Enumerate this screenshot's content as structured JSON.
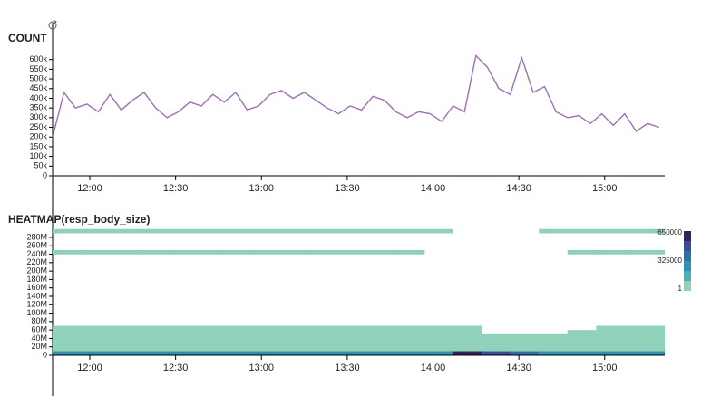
{
  "chart_data": [
    {
      "type": "line",
      "title": "COUNT",
      "color": "#9e6fb5",
      "x": [
        "11:47",
        "11:51",
        "11:55",
        "11:59",
        "12:03",
        "12:07",
        "12:11",
        "12:15",
        "12:19",
        "12:23",
        "12:27",
        "12:31",
        "12:35",
        "12:39",
        "12:43",
        "12:47",
        "12:51",
        "12:55",
        "12:59",
        "13:03",
        "13:07",
        "13:11",
        "13:15",
        "13:19",
        "13:23",
        "13:27",
        "13:31",
        "13:35",
        "13:39",
        "13:43",
        "13:47",
        "13:51",
        "13:55",
        "13:59",
        "14:03",
        "14:07",
        "14:11",
        "14:15",
        "14:19",
        "14:23",
        "14:27",
        "14:31",
        "14:35",
        "14:39",
        "14:43",
        "14:47",
        "14:51",
        "14:55",
        "14:59",
        "15:03",
        "15:07",
        "15:11",
        "15:15",
        "15:19"
      ],
      "values": [
        200000,
        430000,
        350000,
        370000,
        330000,
        420000,
        340000,
        390000,
        430000,
        350000,
        300000,
        330000,
        380000,
        360000,
        420000,
        380000,
        430000,
        340000,
        360000,
        420000,
        440000,
        400000,
        430000,
        390000,
        350000,
        320000,
        360000,
        340000,
        410000,
        390000,
        330000,
        300000,
        330000,
        320000,
        280000,
        360000,
        330000,
        620000,
        560000,
        450000,
        420000,
        610000,
        430000,
        460000,
        330000,
        300000,
        310000,
        270000,
        320000,
        260000,
        320000,
        230000,
        270000,
        250000
      ],
      "xlim": [
        "11:47",
        "15:21"
      ],
      "xticks": [
        "12:00",
        "12:30",
        "13:00",
        "13:30",
        "14:00",
        "14:30",
        "15:00"
      ],
      "ylim": [
        0,
        650000
      ],
      "yticks": [
        0,
        {
          "value": 50000,
          "label": "50k"
        },
        {
          "value": 100000,
          "label": "100k"
        },
        {
          "value": 150000,
          "label": "150k"
        },
        {
          "value": 200000,
          "label": "200k"
        },
        {
          "value": 250000,
          "label": "250k"
        },
        {
          "value": 300000,
          "label": "300k"
        },
        {
          "value": 350000,
          "label": "350k"
        },
        {
          "value": 400000,
          "label": "400k"
        },
        {
          "value": 450000,
          "label": "450k"
        },
        {
          "value": 500000,
          "label": "500k"
        },
        {
          "value": 550000,
          "label": "550k"
        },
        {
          "value": 600000,
          "label": "600k"
        }
      ]
    },
    {
      "type": "heatmap",
      "title": "HEATMAP(resp_body_size)",
      "x": [
        "11:47",
        "11:57",
        "12:07",
        "12:17",
        "12:27",
        "12:37",
        "12:47",
        "12:57",
        "13:07",
        "13:17",
        "13:27",
        "13:37",
        "13:47",
        "13:57",
        "14:07",
        "14:17",
        "14:27",
        "14:37",
        "14:47",
        "14:57",
        "15:07",
        "15:17"
      ],
      "rows": [
        {
          "y": 0,
          "values": [
            300000,
            300000,
            300000,
            300000,
            300000,
            300000,
            300000,
            300000,
            300000,
            300000,
            300000,
            300000,
            300000,
            300000,
            600000,
            500000,
            450000,
            300000,
            300000,
            300000,
            300000,
            300000
          ]
        },
        {
          "y": 10000000,
          "values": [
            5000,
            5000,
            5000,
            5000,
            5000,
            5000,
            5000,
            5000,
            5000,
            5000,
            5000,
            5000,
            5000,
            5000,
            5000,
            5000,
            5000,
            5000,
            5000,
            5000,
            5000,
            5000
          ]
        },
        {
          "y": 20000000,
          "values": [
            500,
            500,
            500,
            500,
            500,
            500,
            500,
            500,
            500,
            500,
            500,
            500,
            500,
            500,
            500,
            500,
            500,
            500,
            500,
            500,
            500,
            500
          ]
        },
        {
          "y": 30000000,
          "values": [
            500,
            500,
            500,
            500,
            500,
            500,
            500,
            500,
            500,
            500,
            500,
            500,
            500,
            500,
            500,
            500,
            500,
            500,
            500,
            500,
            500,
            500
          ]
        },
        {
          "y": 40000000,
          "values": [
            500,
            500,
            500,
            500,
            500,
            500,
            500,
            500,
            500,
            500,
            500,
            500,
            500,
            500,
            500,
            500,
            500,
            500,
            500,
            500,
            500,
            500
          ]
        },
        {
          "y": 50000000,
          "values": [
            50,
            50,
            50,
            50,
            50,
            50,
            50,
            50,
            50,
            50,
            50,
            50,
            50,
            50,
            50,
            null,
            null,
            null,
            50,
            50,
            50,
            50
          ]
        },
        {
          "y": 60000000,
          "values": [
            5,
            5,
            5,
            5,
            5,
            5,
            5,
            5,
            5,
            5,
            5,
            5,
            5,
            5,
            5,
            null,
            null,
            null,
            null,
            5,
            5,
            5
          ]
        },
        {
          "y": 240000000,
          "values": [
            1,
            1,
            1,
            1,
            1,
            1,
            1,
            1,
            1,
            1,
            1,
            1,
            1,
            null,
            null,
            null,
            null,
            null,
            1,
            1,
            1,
            1
          ]
        },
        {
          "y": 290000000,
          "values": [
            1,
            1,
            1,
            1,
            1,
            1,
            1,
            1,
            1,
            1,
            1,
            1,
            1,
            1,
            null,
            null,
            null,
            1,
            1,
            1,
            1,
            1
          ]
        }
      ],
      "colorscale": [
        "#8fd1bb",
        "#4fb0b3",
        "#3090b0",
        "#2f6ea8",
        "#3b4a9a",
        "#35205a"
      ],
      "legend_ticks": [
        650000,
        325000,
        1
      ],
      "xlim": [
        "11:47",
        "15:21"
      ],
      "xticks": [
        "12:00",
        "12:30",
        "13:00",
        "13:30",
        "14:00",
        "14:30",
        "15:00"
      ],
      "ylim": [
        0,
        295000000
      ],
      "yticks": [
        0,
        {
          "value": 20000000,
          "label": "20M"
        },
        {
          "value": 40000000,
          "label": "40M"
        },
        {
          "value": 60000000,
          "label": "60M"
        },
        {
          "value": 80000000,
          "label": "80M"
        },
        {
          "value": 100000000,
          "label": "100M"
        },
        {
          "value": 120000000,
          "label": "120M"
        },
        {
          "value": 140000000,
          "label": "140M"
        },
        {
          "value": 160000000,
          "label": "160M"
        },
        {
          "value": 180000000,
          "label": "180M"
        },
        {
          "value": 200000000,
          "label": "200M"
        },
        {
          "value": 220000000,
          "label": "220M"
        },
        {
          "value": 240000000,
          "label": "240M"
        },
        {
          "value": 260000000,
          "label": "260M"
        },
        {
          "value": 280000000,
          "label": "280M"
        }
      ]
    }
  ]
}
